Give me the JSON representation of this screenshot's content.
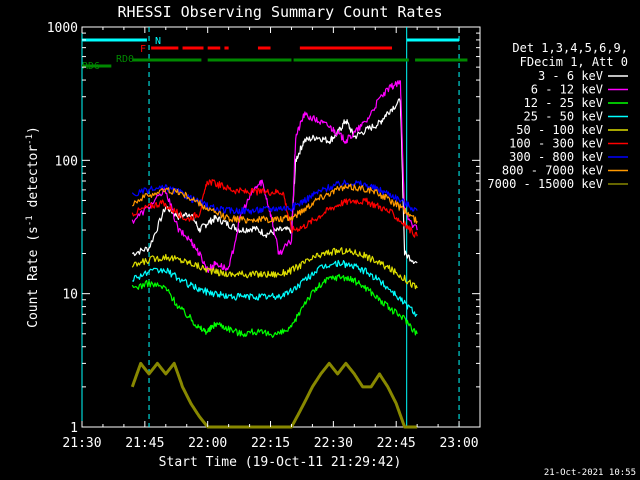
{
  "chart_data": {
    "type": "line",
    "title": "RHESSI Observing Summary Count Rates",
    "xlabel": "Start Time (19-Oct-11 21:29:42)",
    "ylabel_main": "Count Rate (s",
    "ylabel_sup": "-1",
    "ylabel_tail": " detector",
    "ylabel_close": ")",
    "yscale": "log",
    "xlim_minutes": [
      0,
      95
    ],
    "ylim": [
      1,
      1000
    ],
    "x_ticks": [
      {
        "value": 0,
        "label": "21:30"
      },
      {
        "value": 15,
        "label": "21:45"
      },
      {
        "value": 30,
        "label": "22:00"
      },
      {
        "value": 45,
        "label": "22:15"
      },
      {
        "value": 60,
        "label": "22:30"
      },
      {
        "value": 75,
        "label": "22:45"
      },
      {
        "value": 90,
        "label": "23:00"
      }
    ],
    "y_ticks": [
      {
        "value": 1,
        "label": "1"
      },
      {
        "value": 10,
        "label": "10"
      },
      {
        "value": 100,
        "label": "100"
      },
      {
        "value": 1000,
        "label": "1000"
      }
    ],
    "legend_header": [
      "Det 1,3,4,5,6,9,",
      "FDecim 1, Att 0"
    ],
    "legend_position": "right",
    "timestamp": "21-Oct-2021 10:55",
    "flags": [
      {
        "label": "N",
        "color": "#00ffff",
        "segments": [
          [
            0,
            15.5
          ],
          [
            77.5,
            90
          ]
        ]
      },
      {
        "label": "F",
        "color": "#ff0000",
        "segments": [
          [
            16.5,
            23
          ],
          [
            24,
            29
          ],
          [
            30,
            33
          ],
          [
            34,
            35
          ],
          [
            42,
            45
          ],
          [
            52,
            74
          ]
        ]
      },
      {
        "label": "RD0",
        "color": "#008800",
        "segments": [
          [
            12,
            28.5
          ],
          [
            30,
            50
          ],
          [
            50.5,
            78
          ],
          [
            79.5,
            92
          ]
        ]
      },
      {
        "label": "RD6",
        "color": "#008800",
        "segments": [
          [
            0,
            7
          ]
        ]
      }
    ],
    "vlines": [
      {
        "x": 0,
        "color": "#00ffff",
        "style": "solid"
      },
      {
        "x": 16,
        "color": "#00ffff",
        "style": "dashed"
      },
      {
        "x": 77.5,
        "color": "#00ffff",
        "style": "solid"
      },
      {
        "x": 90,
        "color": "#00ffff",
        "style": "dashed"
      }
    ],
    "series": [
      {
        "name": "3 - 6 keV",
        "color": "#ffffff",
        "points": [
          [
            12,
            20
          ],
          [
            16,
            22
          ],
          [
            20,
            45
          ],
          [
            23,
            38
          ],
          [
            26,
            40
          ],
          [
            28,
            30
          ],
          [
            30,
            34
          ],
          [
            32,
            37
          ],
          [
            35,
            33
          ],
          [
            38,
            30
          ],
          [
            41,
            31
          ],
          [
            44,
            28
          ],
          [
            47,
            30
          ],
          [
            50,
            30
          ],
          [
            51,
            100
          ],
          [
            53,
            140
          ],
          [
            56,
            150
          ],
          [
            59,
            140
          ],
          [
            61,
            160
          ],
          [
            63,
            200
          ],
          [
            65,
            150
          ],
          [
            68,
            170
          ],
          [
            71,
            190
          ],
          [
            73,
            230
          ],
          [
            76,
            280
          ],
          [
            77,
            20
          ],
          [
            80,
            17
          ]
        ]
      },
      {
        "name": "6 - 12 keV",
        "color": "#ff00ff",
        "points": [
          [
            12,
            35
          ],
          [
            16,
            45
          ],
          [
            20,
            60
          ],
          [
            23,
            30
          ],
          [
            26,
            25
          ],
          [
            28,
            20
          ],
          [
            30,
            15
          ],
          [
            32,
            17
          ],
          [
            35,
            15
          ],
          [
            38,
            40
          ],
          [
            41,
            60
          ],
          [
            43,
            70
          ],
          [
            45,
            40
          ],
          [
            47,
            20
          ],
          [
            50,
            25
          ],
          [
            51,
            150
          ],
          [
            53,
            220
          ],
          [
            56,
            200
          ],
          [
            59,
            180
          ],
          [
            61,
            160
          ],
          [
            63,
            140
          ],
          [
            65,
            160
          ],
          [
            68,
            200
          ],
          [
            71,
            290
          ],
          [
            74,
            360
          ],
          [
            76,
            380
          ],
          [
            77,
            40
          ],
          [
            80,
            30
          ]
        ]
      },
      {
        "name": "12 - 25 keV",
        "color": "#00ff00",
        "points": [
          [
            12,
            11
          ],
          [
            16,
            12
          ],
          [
            20,
            11
          ],
          [
            23,
            8
          ],
          [
            26,
            6.5
          ],
          [
            28,
            5.5
          ],
          [
            30,
            5.2
          ],
          [
            32,
            6
          ],
          [
            35,
            5.5
          ],
          [
            38,
            5.0
          ],
          [
            41,
            5.2
          ],
          [
            44,
            5.0
          ],
          [
            47,
            5.0
          ],
          [
            50,
            5.5
          ],
          [
            53,
            8.5
          ],
          [
            56,
            11
          ],
          [
            59,
            13
          ],
          [
            62,
            13.5
          ],
          [
            65,
            12.5
          ],
          [
            68,
            11
          ],
          [
            71,
            9
          ],
          [
            74,
            7.5
          ],
          [
            77,
            6.5
          ],
          [
            80,
            5
          ]
        ]
      },
      {
        "name": "25 - 50 keV",
        "color": "#00ffff",
        "points": [
          [
            12,
            13
          ],
          [
            16,
            14.5
          ],
          [
            20,
            15
          ],
          [
            23,
            13
          ],
          [
            26,
            11.5
          ],
          [
            29,
            10.5
          ],
          [
            32,
            10
          ],
          [
            35,
            9.5
          ],
          [
            38,
            9.5
          ],
          [
            41,
            9.5
          ],
          [
            44,
            9.5
          ],
          [
            47,
            9.5
          ],
          [
            50,
            10.5
          ],
          [
            53,
            12.5
          ],
          [
            56,
            15
          ],
          [
            59,
            16.5
          ],
          [
            62,
            17
          ],
          [
            65,
            16
          ],
          [
            68,
            14.5
          ],
          [
            71,
            12.5
          ],
          [
            74,
            10.5
          ],
          [
            77,
            8.5
          ],
          [
            80,
            7
          ]
        ]
      },
      {
        "name": "50 - 100 keV",
        "color": "#dddd00",
        "points": [
          [
            12,
            16
          ],
          [
            16,
            18
          ],
          [
            20,
            19
          ],
          [
            23,
            18
          ],
          [
            26,
            17
          ],
          [
            29,
            15.5
          ],
          [
            32,
            14.5
          ],
          [
            35,
            14
          ],
          [
            38,
            14
          ],
          [
            41,
            14
          ],
          [
            44,
            14
          ],
          [
            47,
            14
          ],
          [
            50,
            15
          ],
          [
            53,
            17
          ],
          [
            56,
            19
          ],
          [
            59,
            20.5
          ],
          [
            62,
            21
          ],
          [
            65,
            20.5
          ],
          [
            68,
            19
          ],
          [
            71,
            17
          ],
          [
            74,
            15
          ],
          [
            77,
            13
          ],
          [
            80,
            11
          ]
        ]
      },
      {
        "name": "100 - 300 keV",
        "color": "#ff0000",
        "points": [
          [
            12,
            40
          ],
          [
            16,
            45
          ],
          [
            19,
            48
          ],
          [
            22,
            42
          ],
          [
            25,
            36
          ],
          [
            28,
            40
          ],
          [
            30,
            70
          ],
          [
            33,
            65
          ],
          [
            36,
            60
          ],
          [
            39,
            58
          ],
          [
            42,
            58
          ],
          [
            45,
            58
          ],
          [
            48,
            58
          ],
          [
            50,
            30
          ],
          [
            53,
            32
          ],
          [
            56,
            37
          ],
          [
            59,
            43
          ],
          [
            62,
            48
          ],
          [
            65,
            50
          ],
          [
            68,
            49
          ],
          [
            71,
            45
          ],
          [
            74,
            40
          ],
          [
            77,
            33
          ],
          [
            80,
            27
          ]
        ]
      },
      {
        "name": "300 - 800 keV",
        "color": "#0000ff",
        "points": [
          [
            12,
            55
          ],
          [
            16,
            60
          ],
          [
            20,
            62
          ],
          [
            23,
            58
          ],
          [
            26,
            52
          ],
          [
            29,
            47
          ],
          [
            32,
            43
          ],
          [
            35,
            42
          ],
          [
            38,
            42
          ],
          [
            41,
            42
          ],
          [
            44,
            43
          ],
          [
            47,
            44
          ],
          [
            50,
            44
          ],
          [
            53,
            50
          ],
          [
            56,
            57
          ],
          [
            59,
            63
          ],
          [
            62,
            67
          ],
          [
            65,
            68
          ],
          [
            68,
            65
          ],
          [
            71,
            60
          ],
          [
            74,
            55
          ],
          [
            77,
            48
          ],
          [
            80,
            42
          ]
        ]
      },
      {
        "name": "800 - 7000 keV",
        "color": "#ff9900",
        "points": [
          [
            12,
            48
          ],
          [
            16,
            55
          ],
          [
            20,
            60
          ],
          [
            23,
            58
          ],
          [
            26,
            52
          ],
          [
            29,
            45
          ],
          [
            32,
            40
          ],
          [
            35,
            37
          ],
          [
            38,
            36
          ],
          [
            41,
            36
          ],
          [
            44,
            36
          ],
          [
            47,
            36
          ],
          [
            50,
            37
          ],
          [
            53,
            43
          ],
          [
            56,
            51
          ],
          [
            59,
            57
          ],
          [
            62,
            62
          ],
          [
            65,
            63
          ],
          [
            68,
            61
          ],
          [
            71,
            56
          ],
          [
            74,
            49
          ],
          [
            77,
            42
          ],
          [
            80,
            35
          ]
        ]
      },
      {
        "name": "7000 - 15000 keV",
        "color": "#888800",
        "points": [
          [
            12,
            2
          ],
          [
            14,
            3
          ],
          [
            16,
            2.5
          ],
          [
            18,
            3
          ],
          [
            20,
            2.5
          ],
          [
            22,
            3
          ],
          [
            24,
            2
          ],
          [
            26,
            1.5
          ],
          [
            28,
            1.2
          ],
          [
            30,
            1
          ],
          [
            33,
            1
          ],
          [
            36,
            1
          ],
          [
            40,
            1
          ],
          [
            45,
            1
          ],
          [
            50,
            1
          ],
          [
            53,
            1.5
          ],
          [
            55,
            2
          ],
          [
            57,
            2.5
          ],
          [
            59,
            3
          ],
          [
            61,
            2.5
          ],
          [
            63,
            3
          ],
          [
            65,
            2.5
          ],
          [
            67,
            2
          ],
          [
            69,
            2
          ],
          [
            71,
            2.5
          ],
          [
            73,
            2
          ],
          [
            75,
            1.5
          ],
          [
            77,
            1
          ],
          [
            80,
            1
          ]
        ]
      }
    ]
  }
}
